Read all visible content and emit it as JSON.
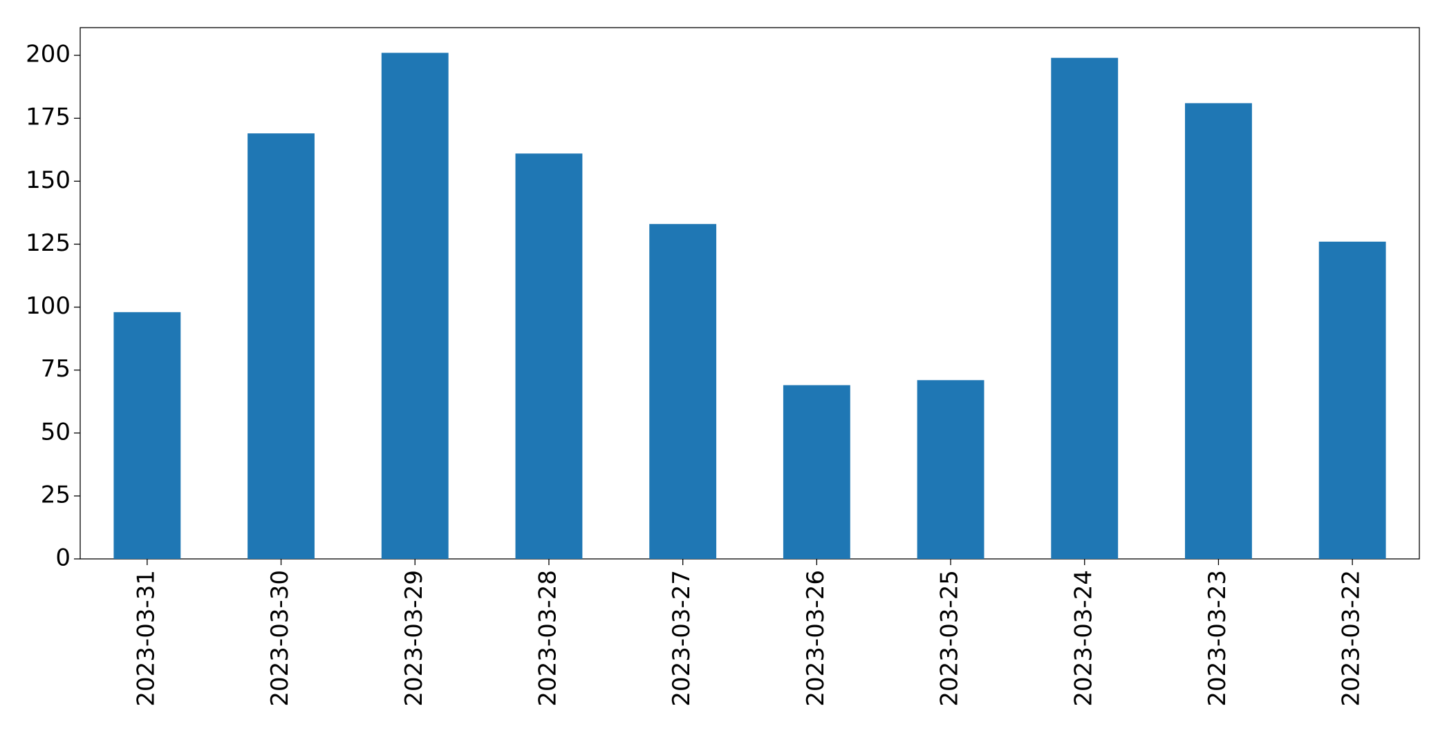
{
  "chart_data": {
    "type": "bar",
    "categories": [
      "2023-03-31",
      "2023-03-30",
      "2023-03-29",
      "2023-03-28",
      "2023-03-27",
      "2023-03-26",
      "2023-03-25",
      "2023-03-24",
      "2023-03-23",
      "2023-03-22"
    ],
    "values": [
      98,
      169,
      201,
      161,
      133,
      69,
      71,
      199,
      181,
      126
    ],
    "color": "#1f77b4",
    "ylim": [
      0,
      211
    ],
    "yticks": [
      0,
      25,
      50,
      75,
      100,
      125,
      150,
      175,
      200
    ],
    "grid": false
  }
}
